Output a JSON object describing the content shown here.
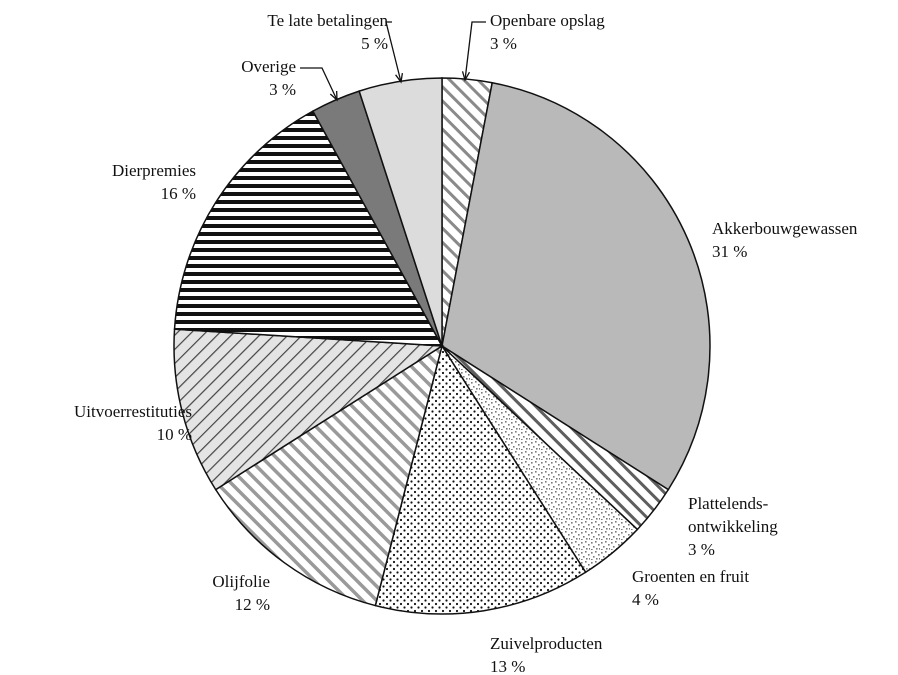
{
  "chart_data": {
    "type": "pie",
    "categories": [
      "Openbare opslag",
      "Akkerbouwgewassen",
      "Plattelends-\nontwikkeling",
      "Groenten en fruit",
      "Zuivelproducten",
      "Olijfolie",
      "Uitvoerrestituties",
      "Dierpremies",
      "Overige",
      "Te late betalingen"
    ],
    "values": [
      3,
      31,
      3,
      4,
      13,
      12,
      10,
      16,
      3,
      5
    ],
    "value_labels": [
      "3 %",
      "31 %",
      "3 %",
      "4 %",
      "13 %",
      "12 %",
      "10 %",
      "16 %",
      "3 %",
      "5 %"
    ],
    "colors": [
      "#8a8a8a",
      "#b9b9b9",
      "#5e5e5e",
      "#7a7a7a",
      "#111111",
      "#9a9a9a",
      "#444444",
      "#111111",
      "#7a7a7a",
      "#dcdcdc"
    ]
  }
}
